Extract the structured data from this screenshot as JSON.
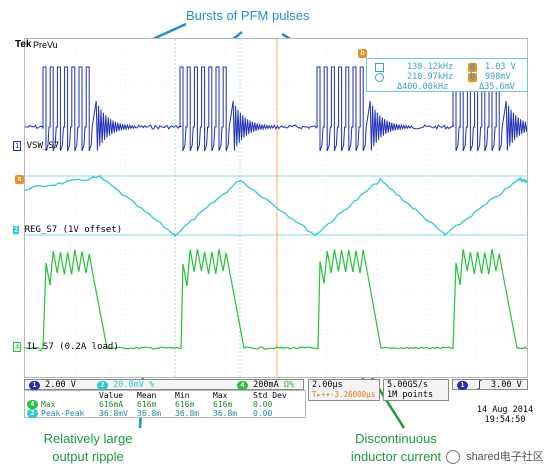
{
  "annotations": {
    "top": "Bursts of PFM pulses",
    "bottom_left_line1": "Relatively large",
    "bottom_left_line2": "output ripple",
    "bottom_right_line1": "Discontinuous",
    "bottom_right_line2": "inductor current"
  },
  "scope": {
    "brand": "Tek",
    "mode": "PreVu",
    "ch1_label": "VSW_S7",
    "ch2_label": "REG_S7 (1V offset)",
    "ch4_label": "IL_S7 (0.2A load)",
    "ch1_marker": "1",
    "ch2_marker": "2",
    "ch4_marker": "4",
    "cursor_a": "a",
    "cursor_b": "b"
  },
  "cursor_readout": {
    "freq_a": "138.12kHz",
    "freq_b": "210.97kHz",
    "freq_delta": "Δ400.00kHz",
    "volt_a": "1.03 V",
    "volt_b": "998mV",
    "volt_delta": "Δ35.6mV"
  },
  "status_bar": {
    "ch1_chip": "1",
    "ch1_scale": "2.00 V",
    "ch2_chip": "2",
    "ch2_scale": "20.0mV",
    "ch2_suffix": "%",
    "ch4_chip": "4",
    "ch4_scale": "200mA",
    "ch4_suffix": "Ω%",
    "timebase": "2.00µs",
    "trigger_pos": "T▸+▾-3.26000µs",
    "sample_rate": "5.00GS/s",
    "record_length": "1M points",
    "trig_chip": "1",
    "trig_slope": "ʃ",
    "trig_level": "3.00 V"
  },
  "measurements": {
    "headers": [
      "",
      "Value",
      "Mean",
      "Min",
      "Max",
      "Std Dev"
    ],
    "rows": [
      {
        "chip": "4",
        "name": "Max",
        "values": [
          "616mA",
          "616m",
          "616m",
          "616m",
          "0.00"
        ]
      },
      {
        "chip": "2",
        "name": "Peak-Peak",
        "values": [
          "36.8mV",
          "36.8m",
          "36.8m",
          "36.8m",
          "0.00"
        ]
      }
    ]
  },
  "timestamp": {
    "date": "14 Aug 2014",
    "time": "19:54:50"
  },
  "watermark": "shared电子社区",
  "colors": {
    "ch1": "#1f2fb8",
    "ch2": "#2ec9d8",
    "ch4": "#22c435",
    "annotation": "#1f8fd0",
    "annotation_green": "#1a9a3a",
    "cursor_box": "#69c7e0",
    "badge": "#f08a24"
  },
  "chart_data": {
    "type": "line",
    "series": [
      {
        "name": "VSW_S7",
        "shape": "burst",
        "bursts": 4,
        "pulses_per_burst": 7
      },
      {
        "name": "REG_S7 (1V offset)",
        "shape": "triangle",
        "peak_to_peak_mV": 36.8
      },
      {
        "name": "IL_S7 (0.2A load)",
        "shape": "discontinuous-pulse-train",
        "max_mA": 616
      }
    ]
  }
}
